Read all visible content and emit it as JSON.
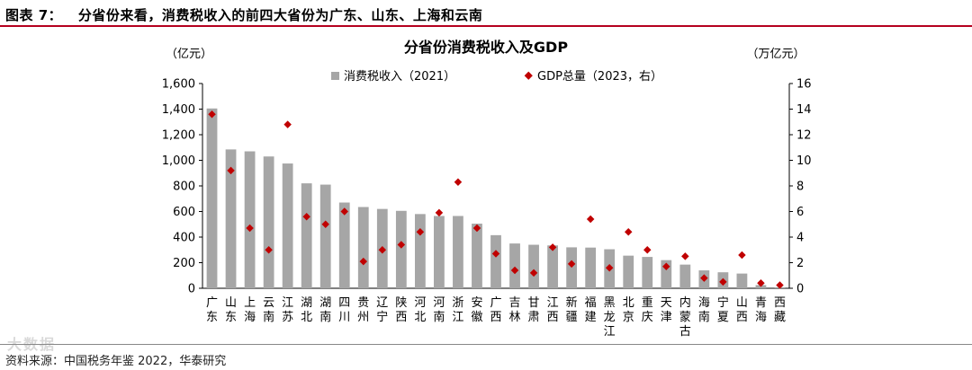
{
  "figure": {
    "label": "图表 7：",
    "title": "分省份来看，消费税收入的前四大省份为广东、山东、上海和云南"
  },
  "source": "资料来源：中国税务年鉴 2022，华泰研究",
  "watermark": "大数据",
  "colors": {
    "bar": "#a6a6a6",
    "marker": "#c00000",
    "rule": "#b5001e"
  },
  "chart_data": {
    "type": "bar",
    "title": "分省份消费税收入及GDP",
    "left_unit": "（亿元）",
    "right_unit": "（万亿元）",
    "categories": [
      "广东",
      "山东",
      "上海",
      "云南",
      "江苏",
      "湖北",
      "湖南",
      "四川",
      "贵州",
      "辽宁",
      "陕西",
      "河北",
      "河南",
      "浙江",
      "安徽",
      "广西",
      "吉林",
      "甘肃",
      "江西",
      "新疆",
      "福建",
      "黑龙江",
      "北京",
      "重庆",
      "天津",
      "内蒙古",
      "海南",
      "宁夏",
      "山西",
      "青海",
      "西藏"
    ],
    "series": [
      {
        "name": "消费税收入（2021）",
        "axis": "left",
        "kind": "bar",
        "values": [
          1405,
          1085,
          1070,
          1030,
          975,
          820,
          810,
          670,
          635,
          620,
          605,
          580,
          565,
          565,
          505,
          415,
          350,
          340,
          335,
          320,
          318,
          305,
          255,
          245,
          220,
          185,
          140,
          125,
          115,
          25,
          8
        ]
      },
      {
        "name": "GDP总量（2023，右）",
        "axis": "right",
        "kind": "marker",
        "values": [
          13.6,
          9.2,
          4.7,
          3.0,
          12.8,
          5.6,
          5.0,
          6.0,
          2.1,
          3.0,
          3.4,
          4.4,
          5.9,
          8.3,
          4.7,
          2.7,
          1.4,
          1.2,
          3.2,
          1.9,
          5.4,
          1.6,
          4.4,
          3.0,
          1.7,
          2.5,
          0.8,
          0.5,
          2.6,
          0.4,
          0.25
        ]
      }
    ],
    "ylim_left": [
      0,
      1600
    ],
    "yticks_left": [
      "0",
      "200",
      "400",
      "600",
      "800",
      "1,000",
      "1,200",
      "1,400",
      "1,600"
    ],
    "ylim_right": [
      0,
      16
    ],
    "yticks_right": [
      "0",
      "2",
      "4",
      "6",
      "8",
      "10",
      "12",
      "14",
      "16"
    ],
    "legend_position": "top-center"
  }
}
